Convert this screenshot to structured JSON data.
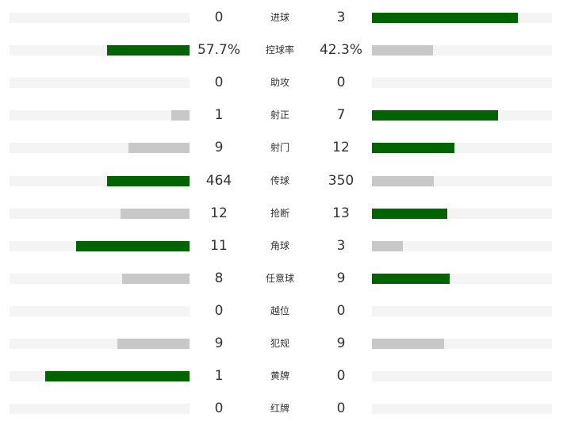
{
  "colors": {
    "winner": "#006400",
    "loser": "#c8c8c8",
    "track": "#f4f4f4"
  },
  "stats": [
    {
      "label": "进球",
      "home": "0",
      "away": "3",
      "home_pct": 0,
      "away_pct": 0.81
    },
    {
      "label": "控球率",
      "home": "57.7%",
      "away": "42.3%",
      "home_pct": 0.46,
      "away_pct": 0.34
    },
    {
      "label": "助攻",
      "home": "0",
      "away": "0",
      "home_pct": 0,
      "away_pct": 0
    },
    {
      "label": "射正",
      "home": "1",
      "away": "7",
      "home_pct": 0.1,
      "away_pct": 0.7
    },
    {
      "label": "射门",
      "home": "9",
      "away": "12",
      "home_pct": 0.34,
      "away_pct": 0.46
    },
    {
      "label": "传球",
      "home": "464",
      "away": "350",
      "home_pct": 0.46,
      "away_pct": 0.345
    },
    {
      "label": "抢断",
      "home": "12",
      "away": "13",
      "home_pct": 0.385,
      "away_pct": 0.42
    },
    {
      "label": "角球",
      "home": "11",
      "away": "3",
      "home_pct": 0.63,
      "away_pct": 0.17
    },
    {
      "label": "任意球",
      "home": "8",
      "away": "9",
      "home_pct": 0.375,
      "away_pct": 0.43
    },
    {
      "label": "越位",
      "home": "0",
      "away": "0",
      "home_pct": 0,
      "away_pct": 0
    },
    {
      "label": "犯规",
      "home": "9",
      "away": "9",
      "home_pct": 0.4,
      "away_pct": 0.4
    },
    {
      "label": "黄牌",
      "home": "1",
      "away": "0",
      "home_pct": 0.8,
      "away_pct": 0
    },
    {
      "label": "红牌",
      "home": "0",
      "away": "0",
      "home_pct": 0,
      "away_pct": 0
    }
  ]
}
